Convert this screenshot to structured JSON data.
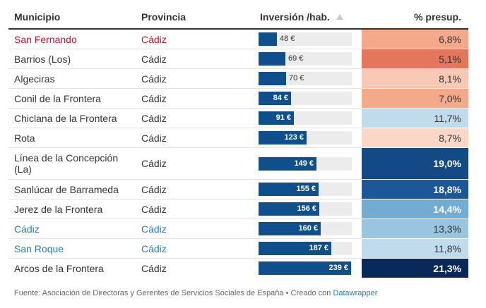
{
  "headers": {
    "municipio": "Municipio",
    "provincia": "Provincia",
    "inversion": "Inversión /hab.",
    "presupuesto": "% presup."
  },
  "rows": [
    {
      "municipio": "San Fernando",
      "provincia": "Cádiz",
      "inversion": "48 €",
      "presupuesto": "6,8%",
      "link_color": "#d0102a"
    },
    {
      "municipio": "Barrios (Los)",
      "provincia": "Cádiz",
      "inversion": "69 €",
      "presupuesto": "5,1%"
    },
    {
      "municipio": "Algeciras",
      "provincia": "Cádiz",
      "inversion": "70 €",
      "presupuesto": "8,1%"
    },
    {
      "municipio": "Conil de la Frontera",
      "provincia": "Cádiz",
      "inversion": "84 €",
      "presupuesto": "7,0%"
    },
    {
      "municipio": "Chiclana de la Frontera",
      "provincia": "Cádiz",
      "inversion": "91 €",
      "presupuesto": "11,7%"
    },
    {
      "municipio": "Rota",
      "provincia": "Cádiz",
      "inversion": "123 €",
      "presupuesto": "8,7%"
    },
    {
      "municipio": "Línea de la Concepción (La)",
      "provincia": "Cádiz",
      "inversion": "149 €",
      "presupuesto": "19,0%"
    },
    {
      "municipio": "Sanlúcar de Barrameda",
      "provincia": "Cádiz",
      "inversion": "155 €",
      "presupuesto": "18,8%"
    },
    {
      "municipio": "Jerez de la Frontera",
      "provincia": "Cádiz",
      "inversion": "156 €",
      "presupuesto": "14,4%"
    },
    {
      "municipio": "Cádiz",
      "provincia": "Cádiz",
      "inversion": "160 €",
      "presupuesto": "13,3%",
      "link_color": "#1f7fbf"
    },
    {
      "municipio": "San Roque",
      "provincia": "Cádiz",
      "inversion": "187 €",
      "presupuesto": "11,8%",
      "link_color": "#1f7fbf"
    },
    {
      "municipio": "Arcos de la Frontera",
      "provincia": "Cádiz",
      "inversion": "239 €",
      "presupuesto": "21,3%"
    }
  ],
  "chart_data": {
    "type": "table",
    "columns": [
      "Municipio",
      "Provincia",
      "Inversión /hab.",
      "% presup."
    ],
    "sorted_column": "Inversión /hab.",
    "sort_direction": "ascending",
    "bar_column": "Inversión /hab.",
    "bar_max": 240,
    "bar_values": [
      48,
      69,
      70,
      84,
      91,
      123,
      149,
      155,
      156,
      160,
      187,
      239
    ],
    "heatmap_column": "% presup.",
    "heatmap_values": [
      6.8,
      5.1,
      8.1,
      7.0,
      11.7,
      8.7,
      19.0,
      18.8,
      14.4,
      13.3,
      11.8,
      21.3
    ],
    "heatmap_colors": [
      "#f3a98a",
      "#e4775b",
      "#f8c9b4",
      "#f3a98a",
      "#c0dcec",
      "#fbd7c7",
      "#134a86",
      "#1c5797",
      "#73acd3",
      "#99c5e0",
      "#c0dcec",
      "#08295a"
    ],
    "heatmap_dark_text": [
      false,
      false,
      false,
      false,
      false,
      false,
      true,
      true,
      true,
      false,
      false,
      true
    ]
  },
  "footer": {
    "source": "Fuente: Asociación de Directoras y Gerentes de Servicios Sociales de España • Creado con ",
    "brand": "Datawrapper"
  }
}
